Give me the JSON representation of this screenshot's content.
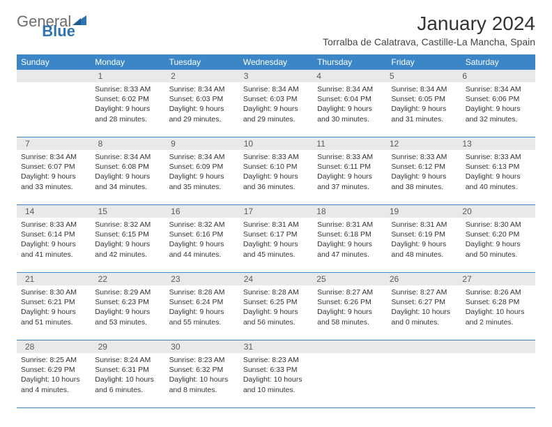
{
  "logo": {
    "part1": "General",
    "part2": "Blue"
  },
  "title": "January 2024",
  "subtitle": "Torralba de Calatrava, Castille-La Mancha, Spain",
  "colors": {
    "header_bg": "#3b86c6",
    "daynum_bg": "#e8e9ea",
    "logo_gray": "#6d6d6d",
    "logo_blue": "#2f73b4"
  },
  "weekdays": [
    "Sunday",
    "Monday",
    "Tuesday",
    "Wednesday",
    "Thursday",
    "Friday",
    "Saturday"
  ],
  "weeks": [
    {
      "nums": [
        "",
        "1",
        "2",
        "3",
        "4",
        "5",
        "6"
      ],
      "cells": [
        null,
        {
          "sr": "Sunrise: 8:33 AM",
          "ss": "Sunset: 6:02 PM",
          "d1": "Daylight: 9 hours",
          "d2": "and 28 minutes."
        },
        {
          "sr": "Sunrise: 8:34 AM",
          "ss": "Sunset: 6:03 PM",
          "d1": "Daylight: 9 hours",
          "d2": "and 29 minutes."
        },
        {
          "sr": "Sunrise: 8:34 AM",
          "ss": "Sunset: 6:03 PM",
          "d1": "Daylight: 9 hours",
          "d2": "and 29 minutes."
        },
        {
          "sr": "Sunrise: 8:34 AM",
          "ss": "Sunset: 6:04 PM",
          "d1": "Daylight: 9 hours",
          "d2": "and 30 minutes."
        },
        {
          "sr": "Sunrise: 8:34 AM",
          "ss": "Sunset: 6:05 PM",
          "d1": "Daylight: 9 hours",
          "d2": "and 31 minutes."
        },
        {
          "sr": "Sunrise: 8:34 AM",
          "ss": "Sunset: 6:06 PM",
          "d1": "Daylight: 9 hours",
          "d2": "and 32 minutes."
        }
      ]
    },
    {
      "nums": [
        "7",
        "8",
        "9",
        "10",
        "11",
        "12",
        "13"
      ],
      "cells": [
        {
          "sr": "Sunrise: 8:34 AM",
          "ss": "Sunset: 6:07 PM",
          "d1": "Daylight: 9 hours",
          "d2": "and 33 minutes."
        },
        {
          "sr": "Sunrise: 8:34 AM",
          "ss": "Sunset: 6:08 PM",
          "d1": "Daylight: 9 hours",
          "d2": "and 34 minutes."
        },
        {
          "sr": "Sunrise: 8:34 AM",
          "ss": "Sunset: 6:09 PM",
          "d1": "Daylight: 9 hours",
          "d2": "and 35 minutes."
        },
        {
          "sr": "Sunrise: 8:33 AM",
          "ss": "Sunset: 6:10 PM",
          "d1": "Daylight: 9 hours",
          "d2": "and 36 minutes."
        },
        {
          "sr": "Sunrise: 8:33 AM",
          "ss": "Sunset: 6:11 PM",
          "d1": "Daylight: 9 hours",
          "d2": "and 37 minutes."
        },
        {
          "sr": "Sunrise: 8:33 AM",
          "ss": "Sunset: 6:12 PM",
          "d1": "Daylight: 9 hours",
          "d2": "and 38 minutes."
        },
        {
          "sr": "Sunrise: 8:33 AM",
          "ss": "Sunset: 6:13 PM",
          "d1": "Daylight: 9 hours",
          "d2": "and 40 minutes."
        }
      ]
    },
    {
      "nums": [
        "14",
        "15",
        "16",
        "17",
        "18",
        "19",
        "20"
      ],
      "cells": [
        {
          "sr": "Sunrise: 8:33 AM",
          "ss": "Sunset: 6:14 PM",
          "d1": "Daylight: 9 hours",
          "d2": "and 41 minutes."
        },
        {
          "sr": "Sunrise: 8:32 AM",
          "ss": "Sunset: 6:15 PM",
          "d1": "Daylight: 9 hours",
          "d2": "and 42 minutes."
        },
        {
          "sr": "Sunrise: 8:32 AM",
          "ss": "Sunset: 6:16 PM",
          "d1": "Daylight: 9 hours",
          "d2": "and 44 minutes."
        },
        {
          "sr": "Sunrise: 8:31 AM",
          "ss": "Sunset: 6:17 PM",
          "d1": "Daylight: 9 hours",
          "d2": "and 45 minutes."
        },
        {
          "sr": "Sunrise: 8:31 AM",
          "ss": "Sunset: 6:18 PM",
          "d1": "Daylight: 9 hours",
          "d2": "and 47 minutes."
        },
        {
          "sr": "Sunrise: 8:31 AM",
          "ss": "Sunset: 6:19 PM",
          "d1": "Daylight: 9 hours",
          "d2": "and 48 minutes."
        },
        {
          "sr": "Sunrise: 8:30 AM",
          "ss": "Sunset: 6:20 PM",
          "d1": "Daylight: 9 hours",
          "d2": "and 50 minutes."
        }
      ]
    },
    {
      "nums": [
        "21",
        "22",
        "23",
        "24",
        "25",
        "26",
        "27"
      ],
      "cells": [
        {
          "sr": "Sunrise: 8:30 AM",
          "ss": "Sunset: 6:21 PM",
          "d1": "Daylight: 9 hours",
          "d2": "and 51 minutes."
        },
        {
          "sr": "Sunrise: 8:29 AM",
          "ss": "Sunset: 6:23 PM",
          "d1": "Daylight: 9 hours",
          "d2": "and 53 minutes."
        },
        {
          "sr": "Sunrise: 8:28 AM",
          "ss": "Sunset: 6:24 PM",
          "d1": "Daylight: 9 hours",
          "d2": "and 55 minutes."
        },
        {
          "sr": "Sunrise: 8:28 AM",
          "ss": "Sunset: 6:25 PM",
          "d1": "Daylight: 9 hours",
          "d2": "and 56 minutes."
        },
        {
          "sr": "Sunrise: 8:27 AM",
          "ss": "Sunset: 6:26 PM",
          "d1": "Daylight: 9 hours",
          "d2": "and 58 minutes."
        },
        {
          "sr": "Sunrise: 8:27 AM",
          "ss": "Sunset: 6:27 PM",
          "d1": "Daylight: 10 hours",
          "d2": "and 0 minutes."
        },
        {
          "sr": "Sunrise: 8:26 AM",
          "ss": "Sunset: 6:28 PM",
          "d1": "Daylight: 10 hours",
          "d2": "and 2 minutes."
        }
      ]
    },
    {
      "nums": [
        "28",
        "29",
        "30",
        "31",
        "",
        "",
        ""
      ],
      "cells": [
        {
          "sr": "Sunrise: 8:25 AM",
          "ss": "Sunset: 6:29 PM",
          "d1": "Daylight: 10 hours",
          "d2": "and 4 minutes."
        },
        {
          "sr": "Sunrise: 8:24 AM",
          "ss": "Sunset: 6:31 PM",
          "d1": "Daylight: 10 hours",
          "d2": "and 6 minutes."
        },
        {
          "sr": "Sunrise: 8:23 AM",
          "ss": "Sunset: 6:32 PM",
          "d1": "Daylight: 10 hours",
          "d2": "and 8 minutes."
        },
        {
          "sr": "Sunrise: 8:23 AM",
          "ss": "Sunset: 6:33 PM",
          "d1": "Daylight: 10 hours",
          "d2": "and 10 minutes."
        },
        null,
        null,
        null
      ]
    }
  ]
}
